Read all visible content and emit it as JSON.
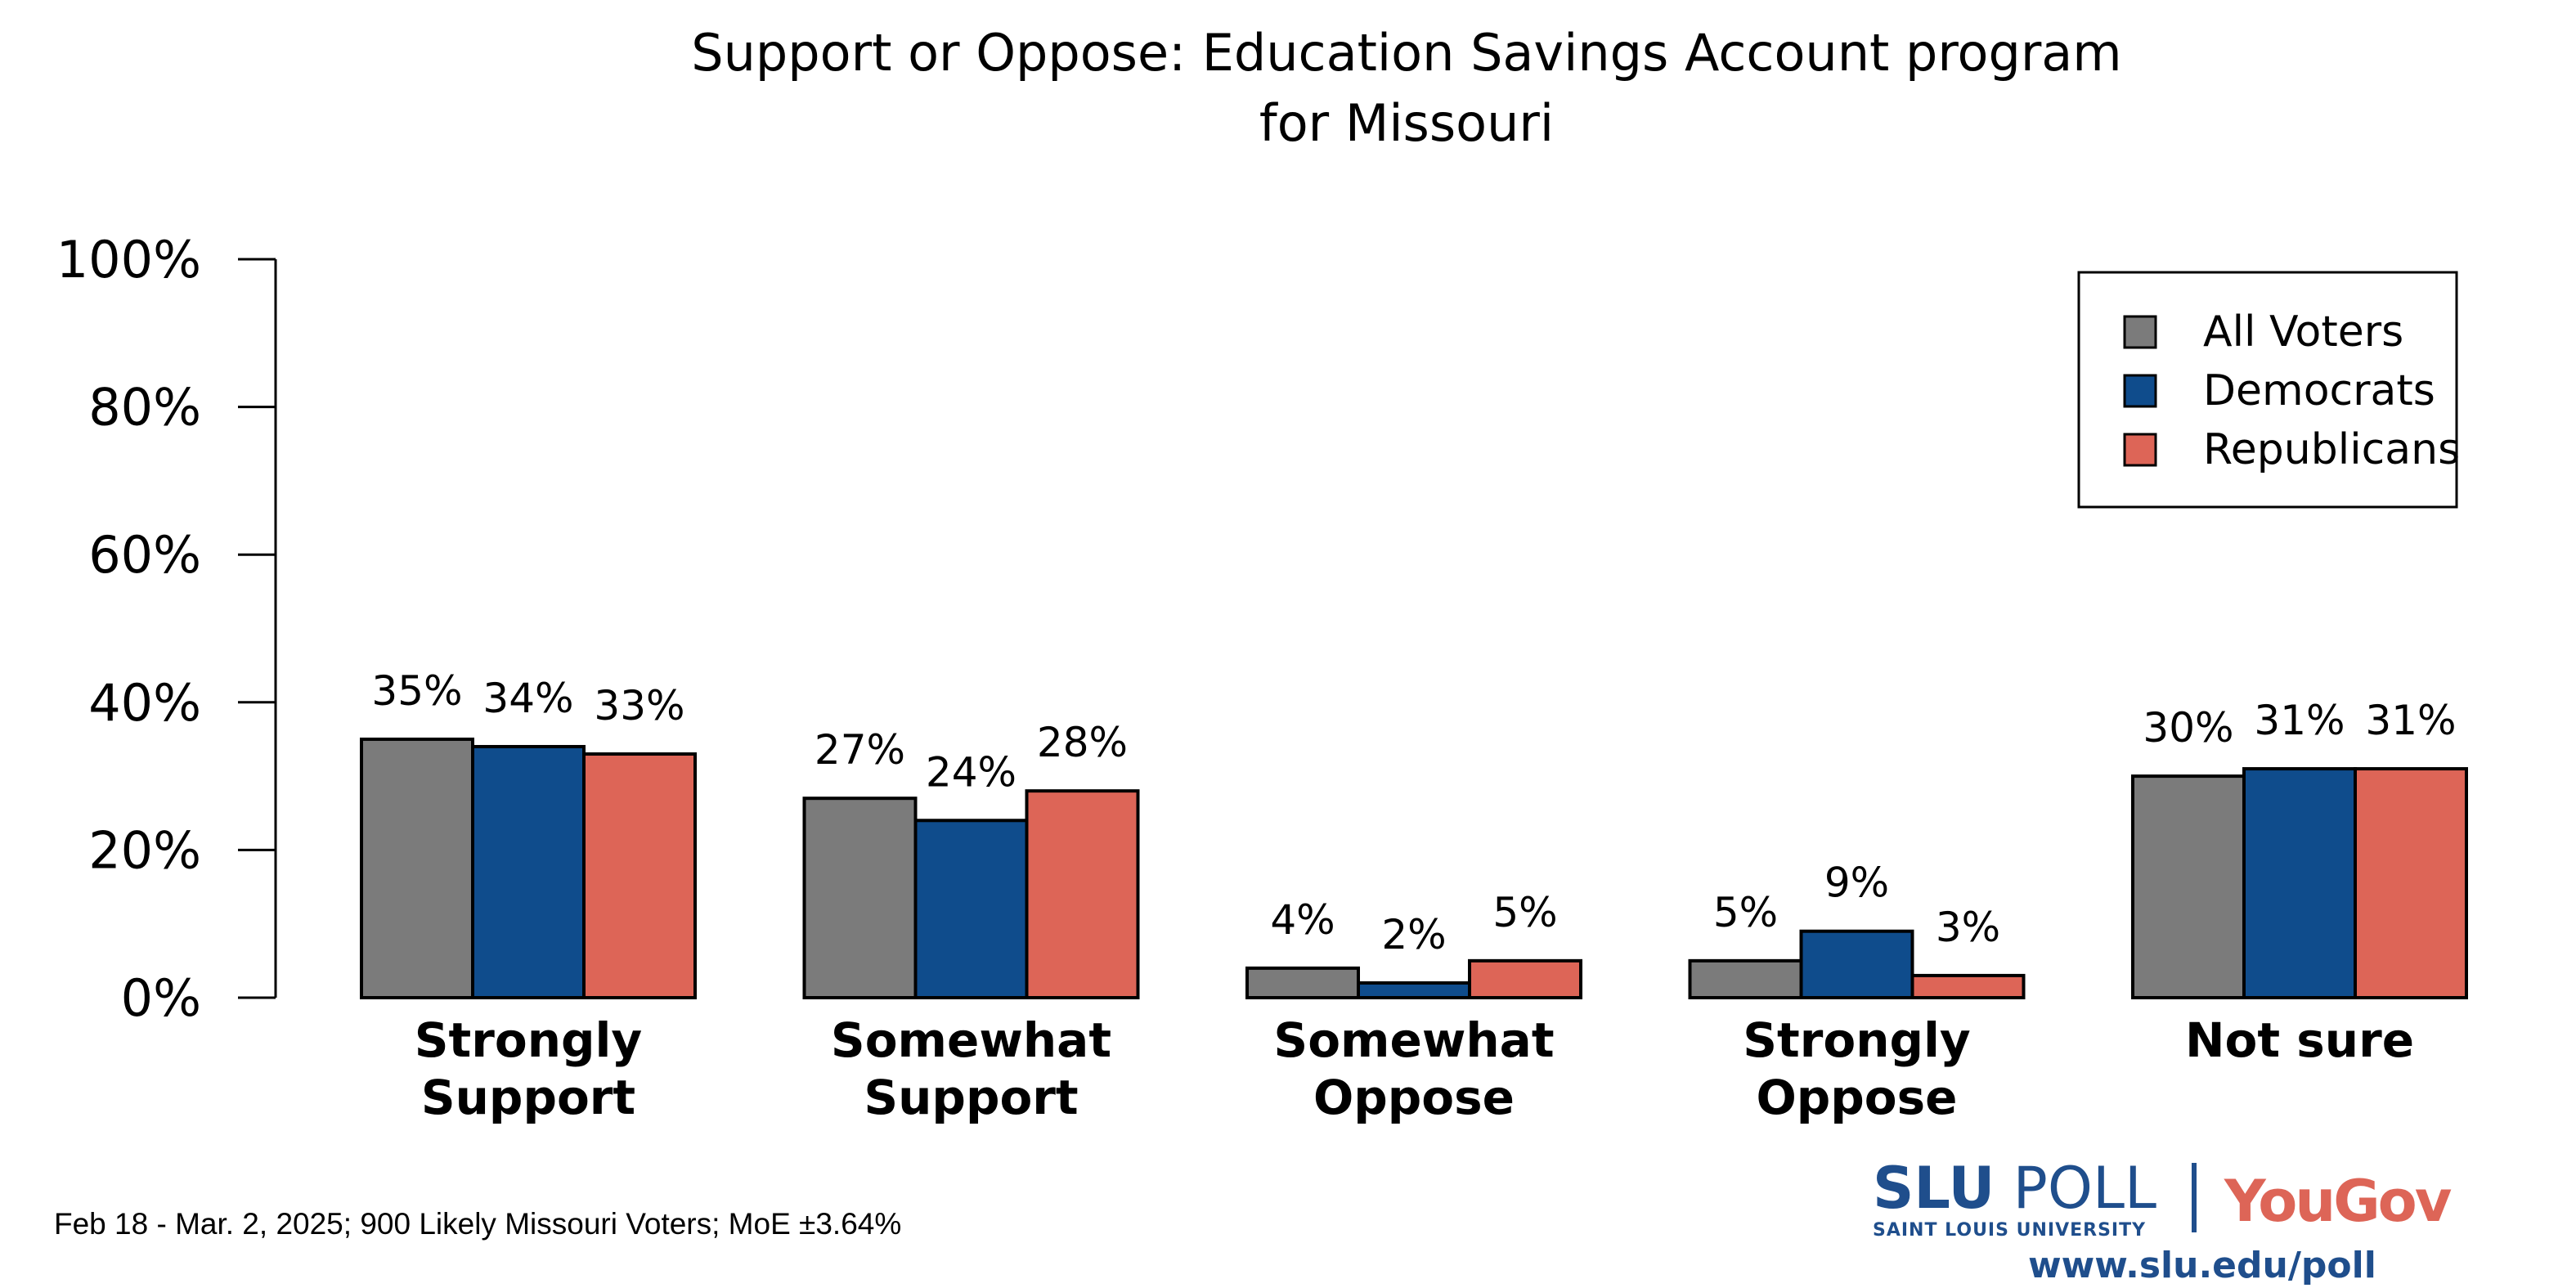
{
  "chart_data": {
    "type": "bar",
    "title": [
      "Support or Oppose: Education Savings Account program",
      "for Missouri"
    ],
    "categories": [
      [
        "Strongly",
        "Support"
      ],
      [
        "Somewhat",
        "Support"
      ],
      [
        "Somewhat",
        "Oppose"
      ],
      [
        "Strongly",
        "Oppose"
      ],
      [
        "Not sure"
      ]
    ],
    "series": [
      {
        "name": "All Voters",
        "color": "#7b7b7b",
        "values": [
          35,
          27,
          4,
          5,
          30
        ]
      },
      {
        "name": "Democrats",
        "color": "#0f4c8c",
        "values": [
          34,
          24,
          2,
          9,
          31
        ]
      },
      {
        "name": "Republicans",
        "color": "#dd6557",
        "values": [
          33,
          28,
          5,
          3,
          31
        ]
      }
    ],
    "ylim": [
      0,
      100
    ],
    "yticks": [
      "0%",
      "20%",
      "40%",
      "60%",
      "80%",
      "100%"
    ],
    "value_suffix": "%",
    "grid": false,
    "legend": "top-right"
  },
  "footer": "Feb 18 - Mar. 2, 2025; 900 Likely Missouri Voters; MoE ±3.64%",
  "logo": {
    "slu_bold": "SLU",
    "slu_poll": "POLL",
    "slu_sub": "SAINT LOUIS UNIVERSITY",
    "yougov": "YouGov",
    "url": "www.slu.edu/poll"
  }
}
